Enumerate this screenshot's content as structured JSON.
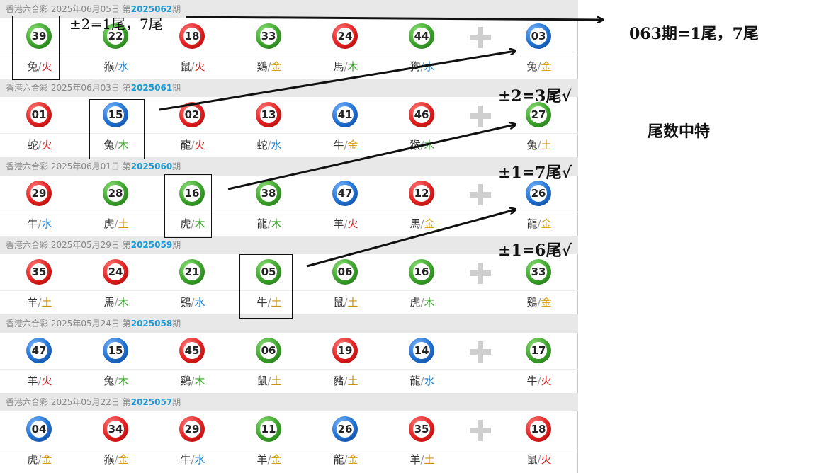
{
  "draws": [
    {
      "header_prefix": "香港六合彩 2025年06月05日 第",
      "issue": "2025062",
      "header_suffix": "期",
      "balls": [
        {
          "num": "39",
          "color": "green",
          "zodiac": "兔",
          "element": "火"
        },
        {
          "num": "22",
          "color": "green",
          "zodiac": "猴",
          "element": "水"
        },
        {
          "num": "18",
          "color": "red",
          "zodiac": "鼠",
          "element": "火"
        },
        {
          "num": "33",
          "color": "green",
          "zodiac": "鷄",
          "element": "金"
        },
        {
          "num": "24",
          "color": "red",
          "zodiac": "馬",
          "element": "木"
        },
        {
          "num": "44",
          "color": "green",
          "zodiac": "狗",
          "element": "水"
        }
      ],
      "special": {
        "num": "03",
        "color": "blue",
        "zodiac": "兔",
        "element": "金"
      }
    },
    {
      "header_prefix": "香港六合彩 2025年06月03日 第",
      "issue": "2025061",
      "header_suffix": "期",
      "balls": [
        {
          "num": "01",
          "color": "red",
          "zodiac": "蛇",
          "element": "火"
        },
        {
          "num": "15",
          "color": "blue",
          "zodiac": "兔",
          "element": "木"
        },
        {
          "num": "02",
          "color": "red",
          "zodiac": "龍",
          "element": "火"
        },
        {
          "num": "13",
          "color": "red",
          "zodiac": "蛇",
          "element": "水"
        },
        {
          "num": "41",
          "color": "blue",
          "zodiac": "牛",
          "element": "金"
        },
        {
          "num": "46",
          "color": "red",
          "zodiac": "猴",
          "element": "木"
        }
      ],
      "special": {
        "num": "27",
        "color": "green",
        "zodiac": "兔",
        "element": "土"
      }
    },
    {
      "header_prefix": "香港六合彩 2025年06月01日 第",
      "issue": "2025060",
      "header_suffix": "期",
      "balls": [
        {
          "num": "29",
          "color": "red",
          "zodiac": "牛",
          "element": "水"
        },
        {
          "num": "28",
          "color": "green",
          "zodiac": "虎",
          "element": "土"
        },
        {
          "num": "16",
          "color": "green",
          "zodiac": "虎",
          "element": "木"
        },
        {
          "num": "38",
          "color": "green",
          "zodiac": "龍",
          "element": "木"
        },
        {
          "num": "47",
          "color": "blue",
          "zodiac": "羊",
          "element": "火"
        },
        {
          "num": "12",
          "color": "red",
          "zodiac": "馬",
          "element": "金"
        }
      ],
      "special": {
        "num": "26",
        "color": "blue",
        "zodiac": "龍",
        "element": "金"
      }
    },
    {
      "header_prefix": "香港六合彩 2025年05月29日 第",
      "issue": "2025059",
      "header_suffix": "期",
      "balls": [
        {
          "num": "35",
          "color": "red",
          "zodiac": "羊",
          "element": "土"
        },
        {
          "num": "24",
          "color": "red",
          "zodiac": "馬",
          "element": "木"
        },
        {
          "num": "21",
          "color": "green",
          "zodiac": "鷄",
          "element": "水"
        },
        {
          "num": "05",
          "color": "green",
          "zodiac": "牛",
          "element": "土"
        },
        {
          "num": "06",
          "color": "green",
          "zodiac": "鼠",
          "element": "土"
        },
        {
          "num": "16",
          "color": "green",
          "zodiac": "虎",
          "element": "木"
        }
      ],
      "special": {
        "num": "33",
        "color": "green",
        "zodiac": "鷄",
        "element": "金"
      }
    },
    {
      "header_prefix": "香港六合彩 2025年05月24日 第",
      "issue": "2025058",
      "header_suffix": "期",
      "balls": [
        {
          "num": "47",
          "color": "blue",
          "zodiac": "羊",
          "element": "火"
        },
        {
          "num": "15",
          "color": "blue",
          "zodiac": "兔",
          "element": "木"
        },
        {
          "num": "45",
          "color": "red",
          "zodiac": "鷄",
          "element": "木"
        },
        {
          "num": "06",
          "color": "green",
          "zodiac": "鼠",
          "element": "土"
        },
        {
          "num": "19",
          "color": "red",
          "zodiac": "豬",
          "element": "土"
        },
        {
          "num": "14",
          "color": "blue",
          "zodiac": "龍",
          "element": "水"
        }
      ],
      "special": {
        "num": "17",
        "color": "green",
        "zodiac": "牛",
        "element": "火"
      }
    },
    {
      "header_prefix": "香港六合彩 2025年05月22日 第",
      "issue": "2025057",
      "header_suffix": "期",
      "balls": [
        {
          "num": "04",
          "color": "blue",
          "zodiac": "虎",
          "element": "金"
        },
        {
          "num": "34",
          "color": "red",
          "zodiac": "猴",
          "element": "金"
        },
        {
          "num": "29",
          "color": "red",
          "zodiac": "牛",
          "element": "水"
        },
        {
          "num": "11",
          "color": "green",
          "zodiac": "羊",
          "element": "金"
        },
        {
          "num": "26",
          "color": "blue",
          "zodiac": "龍",
          "element": "金"
        },
        {
          "num": "35",
          "color": "red",
          "zodiac": "羊",
          "element": "土"
        }
      ],
      "special": {
        "num": "18",
        "color": "red",
        "zodiac": "鼠",
        "element": "火"
      }
    }
  ],
  "annotations": {
    "note_top": "±2=1尾，7尾",
    "note_063": "063期=1尾，7尾",
    "note_061": "±2=3尾√",
    "note_060": "±1=7尾√",
    "note_059": "±1=6尾√",
    "note_title": "尾数中特"
  },
  "separator": "/",
  "plus_icon": "plus-icon",
  "colors": {
    "red_ball": "#e02020",
    "green_ball": "#3aa12a",
    "blue_ball": "#1f6fd0",
    "issue_link": "#1a9bd7",
    "header_bg": "#e8e8e8"
  }
}
